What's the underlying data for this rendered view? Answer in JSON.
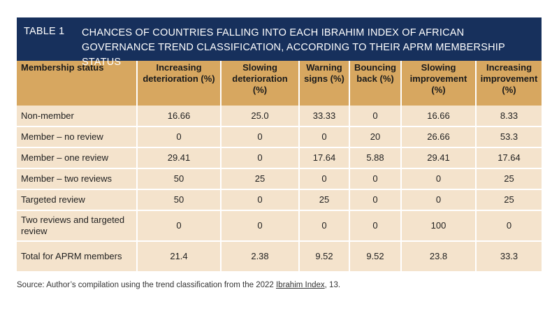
{
  "title": {
    "label": "TABLE 1",
    "text": "CHANCES OF COUNTRIES FALLING INTO EACH IBRAHIM INDEX OF AFRICAN GOVERNANCE TREND CLASSIFICATION, ACCORDING TO THEIR APRM MEMBERSHIP STATUS"
  },
  "table": {
    "headers": [
      "Membership status",
      "Increasing deterioration (%)",
      "Slowing deterioration (%)",
      "Warning signs (%)",
      "Bouncing back (%)",
      "Slowing improvement (%)",
      "Increasing improvement (%)"
    ],
    "rows": [
      [
        "Non-member",
        "16.66",
        "25.0",
        "33.33",
        "0",
        "16.66",
        "8.33"
      ],
      [
        "Member – no review",
        "0",
        "0",
        "0",
        "20",
        "26.66",
        "53.3"
      ],
      [
        "Member – one review",
        "29.41",
        "0",
        "17.64",
        "5.88",
        "29.41",
        "17.64"
      ],
      [
        "Member – two reviews",
        "50",
        "25",
        "0",
        "0",
        "0",
        "25"
      ],
      [
        "Targeted review",
        "50",
        "0",
        "25",
        "0",
        "0",
        "25"
      ],
      [
        "Two reviews and targeted review",
        "0",
        "0",
        "0",
        "0",
        "100",
        "0"
      ],
      [
        "Total for APRM members",
        "21.4",
        "2.38",
        "9.52",
        "9.52",
        "23.8",
        "33.3"
      ]
    ]
  },
  "source": {
    "prefix": "Source: Author’s compilation using the trend classification from the 2022 ",
    "link": "Ibrahim Index",
    "suffix": ", 13."
  },
  "colors": {
    "title_bg": "#17305c",
    "header_bg": "#d7a760",
    "cell_bg": "#f4e3cc"
  }
}
